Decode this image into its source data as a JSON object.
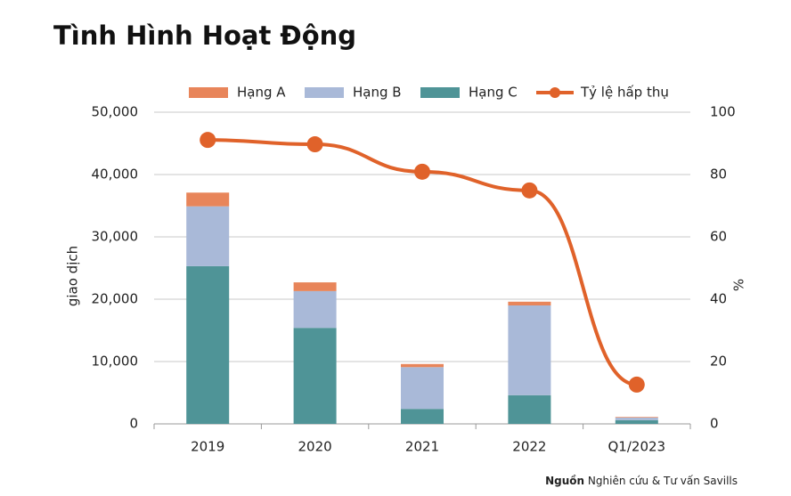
{
  "chart_data": {
    "type": "bar_line",
    "title": "Tình Hình Hoạt Động",
    "categories": [
      "2019",
      "2020",
      "2021",
      "2022",
      "Q1/2023"
    ],
    "series": [
      {
        "name": "Hạng A",
        "color": "#e8855a",
        "values": [
          2200,
          1400,
          500,
          600,
          100
        ]
      },
      {
        "name": "Hạng B",
        "color": "#a9b9d8",
        "values": [
          9600,
          5900,
          6700,
          14400,
          400
        ]
      },
      {
        "name": "Hạng C",
        "color": "#4f9497",
        "values": [
          25300,
          15400,
          2400,
          4600,
          600
        ]
      },
      {
        "name": "Tỷ lệ hấp thụ",
        "color": "#e0622a",
        "axis": "y2",
        "values": [
          91.1,
          89.7,
          80.9,
          74.9,
          12.6
        ]
      }
    ],
    "stack_order": [
      2,
      1,
      0
    ],
    "y_label": "giao dịch",
    "y2_label": "%",
    "ylim": [
      0,
      50000
    ],
    "yticks": [
      0,
      {
        "value": 10000,
        "label": "10,000"
      },
      {
        "value": 20000,
        "label": "20,000"
      },
      {
        "value": 30000,
        "label": "30,000"
      },
      {
        "value": 40000,
        "label": "40,000"
      },
      {
        "value": 50000,
        "label": "50,000"
      }
    ],
    "y2lim": [
      0,
      100
    ],
    "y2ticks": [
      0,
      20,
      40,
      60,
      80,
      100
    ],
    "grid": true,
    "source_label": "Nguồn",
    "source_text": "Nghiên cứu & Tư vấn Savills"
  }
}
